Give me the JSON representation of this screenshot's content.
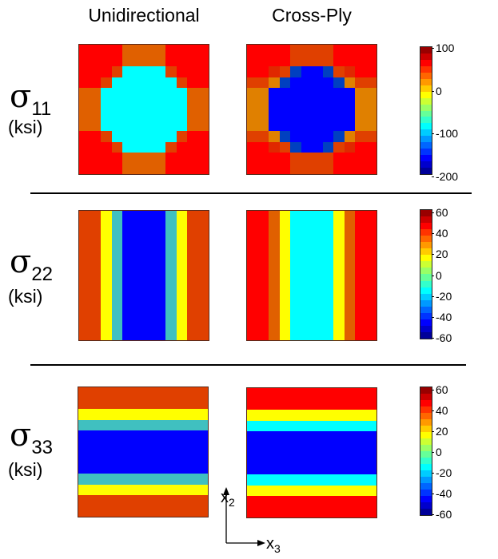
{
  "headers": {
    "col1": "Unidirectional",
    "col2": "Cross-Ply"
  },
  "rows": [
    {
      "symbol": "σ",
      "subscript": "11",
      "unit": "(ksi)"
    },
    {
      "symbol": "σ",
      "subscript": "22",
      "unit": "(ksi)"
    },
    {
      "symbol": "σ",
      "subscript": "33",
      "unit": "(ksi)"
    }
  ],
  "axes": {
    "vertical": "x",
    "vertical_sub": "2",
    "horizontal": "x",
    "horizontal_sub": "3"
  },
  "palette": {
    "R": "#ff0000",
    "D": "#e04000",
    "d": "#e02800",
    "O": "#e06000",
    "o": "#e08000",
    "Y": "#ffff00",
    "T": "#40c0c0",
    "C": "#00ffff",
    "b": "#0040c0",
    "B": "#0000ff"
  },
  "chart_data": [
    {
      "type": "heatmap",
      "title": "σ11 Unidirectional",
      "range": [
        -200,
        100
      ],
      "colorbar_ticks": [
        "100",
        "0",
        "-100",
        "-200"
      ],
      "cells": [
        "RRRROOOORRRR",
        "RRRROOOORRRR",
        "RRRDCCCCDRRR",
        "RRDCCCCCCDRR",
        "OOCCCCCCCCOO",
        "OOCCCCCCCCOO",
        "OOCCCCCCCCOO",
        "OOCCCCCCCCOO",
        "RRDCCCCCCDRR",
        "RRRDCCCCDRRR",
        "RRRROOOORRRR",
        "RRRROOOORRRR"
      ]
    },
    {
      "type": "heatmap",
      "title": "σ11 Cross-Ply",
      "range": [
        -200,
        100
      ],
      "cells": [
        "RRRRDDDDRRRR",
        "RRRRDDDDRRRR",
        "RRdDbBBbDdRR",
        "DDobBBBBboDD",
        "ooBBBBBBBBoo",
        "ooBBBBBBBBoo",
        "ooBBBBBBBBoo",
        "ooBBBBBBBBoo",
        "DDobBBBBboDD",
        "RRdDbBBbDdRR",
        "RRRRDDDDRRRR",
        "RRRRDDDDRRRR"
      ]
    },
    {
      "type": "heatmap",
      "title": "σ22 Unidirectional",
      "range": [
        -60,
        60
      ],
      "colorbar_ticks": [
        "60",
        "40",
        "20",
        "0",
        "-20",
        "-40",
        "-60"
      ],
      "cells": [
        "DDYTBBBBTYDD"
      ]
    },
    {
      "type": "heatmap",
      "title": "σ22 Cross-Ply",
      "range": [
        -60,
        60
      ],
      "cells": [
        "RROYCCCCYORR"
      ]
    },
    {
      "type": "heatmap",
      "title": "σ33 Unidirectional",
      "range": [
        -60,
        60
      ],
      "colorbar_ticks": [
        "60",
        "40",
        "20",
        "0",
        "-20",
        "-40",
        "-60"
      ],
      "cells": [
        "DDDDDDDDDDDD",
        "DDDDDDDDDDDD",
        "YYYYYYYYYYYY",
        "TTTTTTTTTTTT",
        "BBBBBBBBBBBB",
        "BBBBBBBBBBBB",
        "BBBBBBBBBBBB",
        "BBBBBBBBBBBB",
        "TTTTTTTTTTTT",
        "YYYYYYYYYYYY",
        "DDDDDDDDDDDD",
        "DDDDDDDDDDDD"
      ]
    },
    {
      "type": "heatmap",
      "title": "σ33 Cross-Ply",
      "range": [
        -60,
        60
      ],
      "cells": [
        "RRRRRRRRRRRR",
        "RRRRRRRRRRRR",
        "YYYYYYYYYYYY",
        "CCCCCCCCCCCC",
        "BBBBBBBBBBBB",
        "BBBBBBBBBBBB",
        "BBBBBBBBBBBB",
        "BBBBBBBBBBBB",
        "CCCCCCCCCCCC",
        "YYYYYYYYYYYY",
        "RRRRRRRRRRRR",
        "RRRRRRRRRRRR"
      ]
    }
  ]
}
